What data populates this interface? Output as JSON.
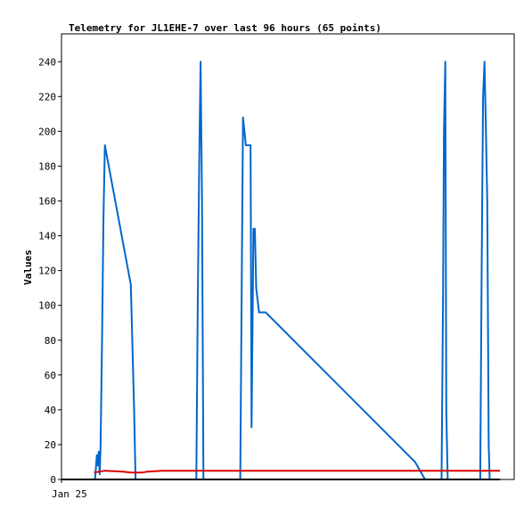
{
  "chart_data": {
    "type": "line",
    "title": "Telemetry for JL1EHE-7 over last 96 hours (65 points)",
    "xlabel": "",
    "ylabel": "Values",
    "xlim": [
      0,
      96
    ],
    "ylim": [
      0,
      256
    ],
    "y_ticks": [
      0,
      20,
      40,
      60,
      80,
      100,
      120,
      140,
      160,
      180,
      200,
      220,
      240
    ],
    "x_tick_labels": [
      {
        "x": 0,
        "label": "Jan 25"
      }
    ],
    "grid": false,
    "legend": "none",
    "series": [
      {
        "color": "#0066cc",
        "points": [
          [
            7.1,
            0
          ],
          [
            7.5,
            14
          ],
          [
            7.7,
            8
          ],
          [
            7.9,
            16
          ],
          [
            8.1,
            3
          ],
          [
            8.3,
            20
          ],
          [
            8.6,
            80
          ],
          [
            8.9,
            150
          ],
          [
            9.2,
            192
          ],
          [
            14.7,
            112
          ],
          [
            15.4,
            40
          ],
          [
            15.7,
            0
          ],
          [
            28.6,
            0
          ],
          [
            28.9,
            100
          ],
          [
            29.2,
            180
          ],
          [
            29.5,
            240
          ],
          [
            29.8,
            160
          ],
          [
            30.1,
            0
          ],
          [
            37.9,
            0
          ],
          [
            38.2,
            100
          ],
          [
            38.5,
            208
          ],
          [
            39.1,
            192
          ],
          [
            40.1,
            192
          ],
          [
            40.3,
            30
          ],
          [
            40.7,
            144
          ],
          [
            41.0,
            144
          ],
          [
            41.3,
            110
          ],
          [
            41.9,
            96
          ],
          [
            43.3,
            96
          ],
          [
            75.0,
            10
          ],
          [
            77.1,
            0
          ],
          [
            80.6,
            0
          ],
          [
            80.9,
            100
          ],
          [
            81.1,
            200
          ],
          [
            81.4,
            240
          ],
          [
            81.6,
            40
          ],
          [
            81.9,
            0
          ],
          [
            88.8,
            0
          ],
          [
            89.1,
            120
          ],
          [
            89.4,
            220
          ],
          [
            89.7,
            240
          ],
          [
            90.0,
            200
          ],
          [
            90.3,
            160
          ],
          [
            90.6,
            20
          ],
          [
            90.8,
            0
          ]
        ]
      },
      {
        "color": "#dd0000",
        "points": [
          [
            6.9,
            4
          ],
          [
            9.2,
            5
          ],
          [
            13.1,
            4.5
          ],
          [
            14.7,
            4
          ],
          [
            17.2,
            4
          ],
          [
            18.2,
            4.5
          ],
          [
            21.4,
            5
          ],
          [
            93.0,
            5
          ]
        ]
      },
      {
        "color": "#000000",
        "points": [
          [
            0,
            0
          ],
          [
            93.0,
            0
          ]
        ]
      }
    ]
  }
}
